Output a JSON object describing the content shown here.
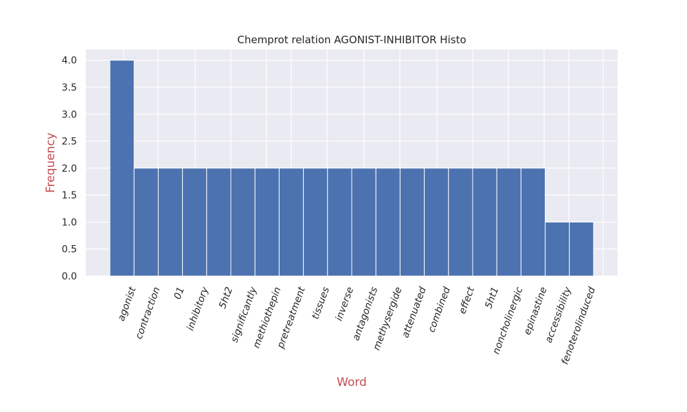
{
  "chart_data": {
    "type": "bar",
    "title": "Chemprot relation AGONIST-INHIBITOR Histo",
    "xlabel": "Word",
    "ylabel": "Frequency",
    "categories": [
      "agonist",
      "contraction",
      "01",
      "inhibitory",
      "5ht2",
      "significantly",
      "methiothepin",
      "pretreatment",
      "tissues",
      "inverse",
      "antagonists",
      "methysergide",
      "attenuated",
      "combined",
      "effect",
      "5ht1",
      "noncholinergic",
      "epinastine",
      "accessibility",
      "fenoterolinduced"
    ],
    "values": [
      4,
      2,
      2,
      2,
      2,
      2,
      2,
      2,
      2,
      2,
      2,
      2,
      2,
      2,
      2,
      2,
      2,
      2,
      1,
      1
    ],
    "ylim": [
      0,
      4.2
    ],
    "yticks": [
      0.0,
      0.5,
      1.0,
      1.5,
      2.0,
      2.5,
      3.0,
      3.5,
      4.0
    ],
    "grid": true,
    "colors": {
      "bar": "#4c72b0",
      "background": "#eaeaf2",
      "grid": "#ffffff",
      "axis_label": "#c44e52"
    }
  }
}
